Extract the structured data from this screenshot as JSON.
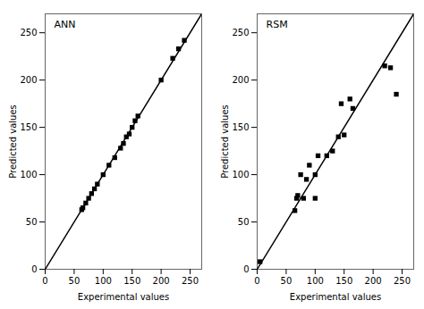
{
  "chart_data": [
    {
      "type": "scatter",
      "title": "ANN",
      "x": [
        63,
        65,
        70,
        75,
        80,
        85,
        90,
        100,
        110,
        120,
        130,
        135,
        140,
        145,
        150,
        155,
        160,
        200,
        220,
        230,
        240
      ],
      "values": [
        63,
        65,
        70,
        75,
        80,
        85,
        90,
        100,
        110,
        118,
        128,
        133,
        140,
        143,
        150,
        157,
        162,
        200,
        223,
        233,
        242
      ],
      "xlabel": "Experimental values",
      "ylabel": "Predicted values",
      "xlim": [
        0,
        270
      ],
      "ylim": [
        0,
        270
      ],
      "xticks": [
        0,
        50,
        100,
        150,
        200,
        250
      ],
      "yticks": [
        0,
        50,
        100,
        150,
        200,
        250
      ],
      "marker": "square",
      "color": "#000000"
    },
    {
      "type": "scatter",
      "title": "RSM",
      "x": [
        5,
        65,
        68,
        70,
        75,
        80,
        85,
        90,
        100,
        100,
        105,
        120,
        130,
        140,
        145,
        150,
        160,
        165,
        220,
        230,
        240
      ],
      "values": [
        8,
        62,
        75,
        78,
        100,
        75,
        95,
        110,
        100,
        75,
        120,
        120,
        125,
        140,
        175,
        142,
        180,
        170,
        215,
        213,
        185
      ],
      "xlabel": "Experimental values",
      "ylabel": "Predicted values",
      "xlim": [
        0,
        270
      ],
      "ylim": [
        0,
        270
      ],
      "xticks": [
        0,
        50,
        100,
        150,
        200,
        250
      ],
      "yticks": [
        0,
        50,
        100,
        150,
        200,
        250
      ],
      "marker": "square",
      "color": "#000000"
    }
  ]
}
